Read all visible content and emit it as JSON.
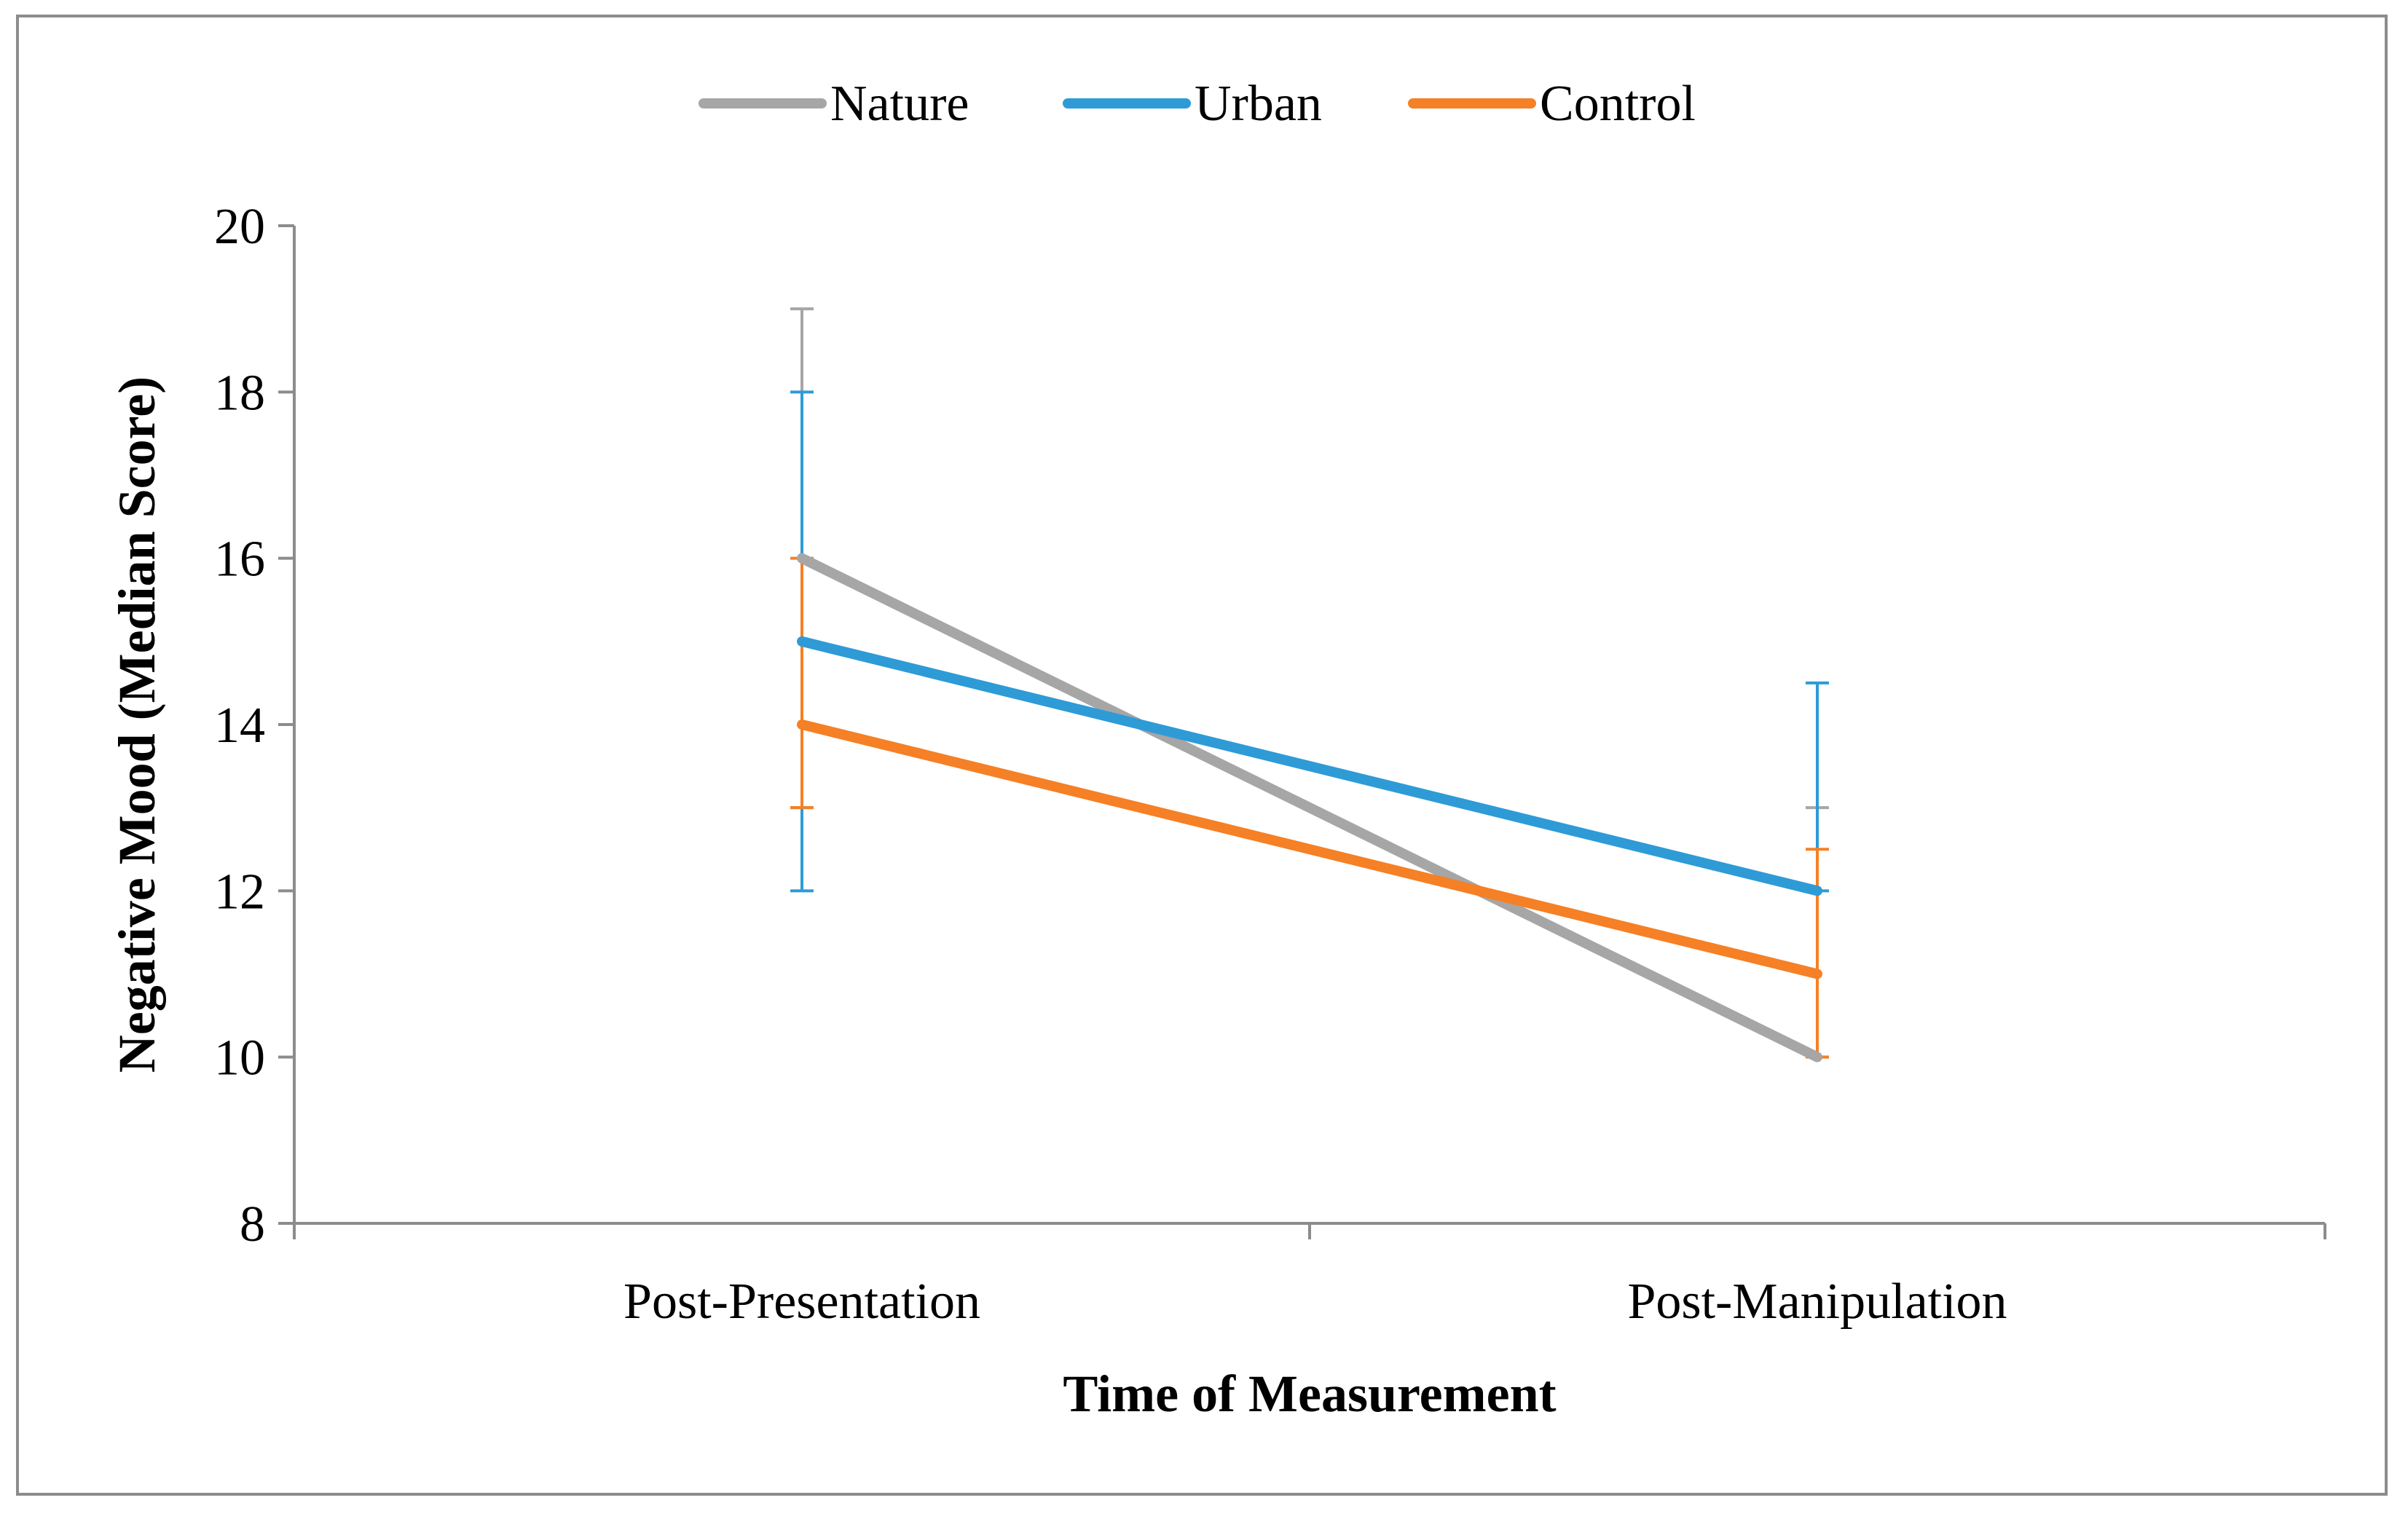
{
  "chart_data": {
    "type": "line",
    "title": "",
    "xlabel": "Time of Measurement",
    "ylabel": "Negative Mood (Median Score)",
    "categories": [
      "Post-Presentation",
      "Post-Manipulation"
    ],
    "ylim": [
      8,
      20
    ],
    "yticks": [
      8,
      10,
      12,
      14,
      16,
      18,
      20
    ],
    "grid": false,
    "legend_position": "top-center",
    "series": [
      {
        "name": "Nature",
        "color": "#a6a6a6",
        "values": [
          16,
          10
        ],
        "error_low": [
          13,
          10
        ],
        "error_high": [
          19,
          13
        ]
      },
      {
        "name": "Urban",
        "color": "#2e9bd6",
        "values": [
          15,
          12
        ],
        "error_low": [
          12,
          12
        ],
        "error_high": [
          18,
          14.5
        ]
      },
      {
        "name": "Control",
        "color": "#f58025",
        "values": [
          14,
          11
        ],
        "error_low": [
          13,
          10
        ],
        "error_high": [
          16,
          12.5
        ]
      }
    ]
  }
}
